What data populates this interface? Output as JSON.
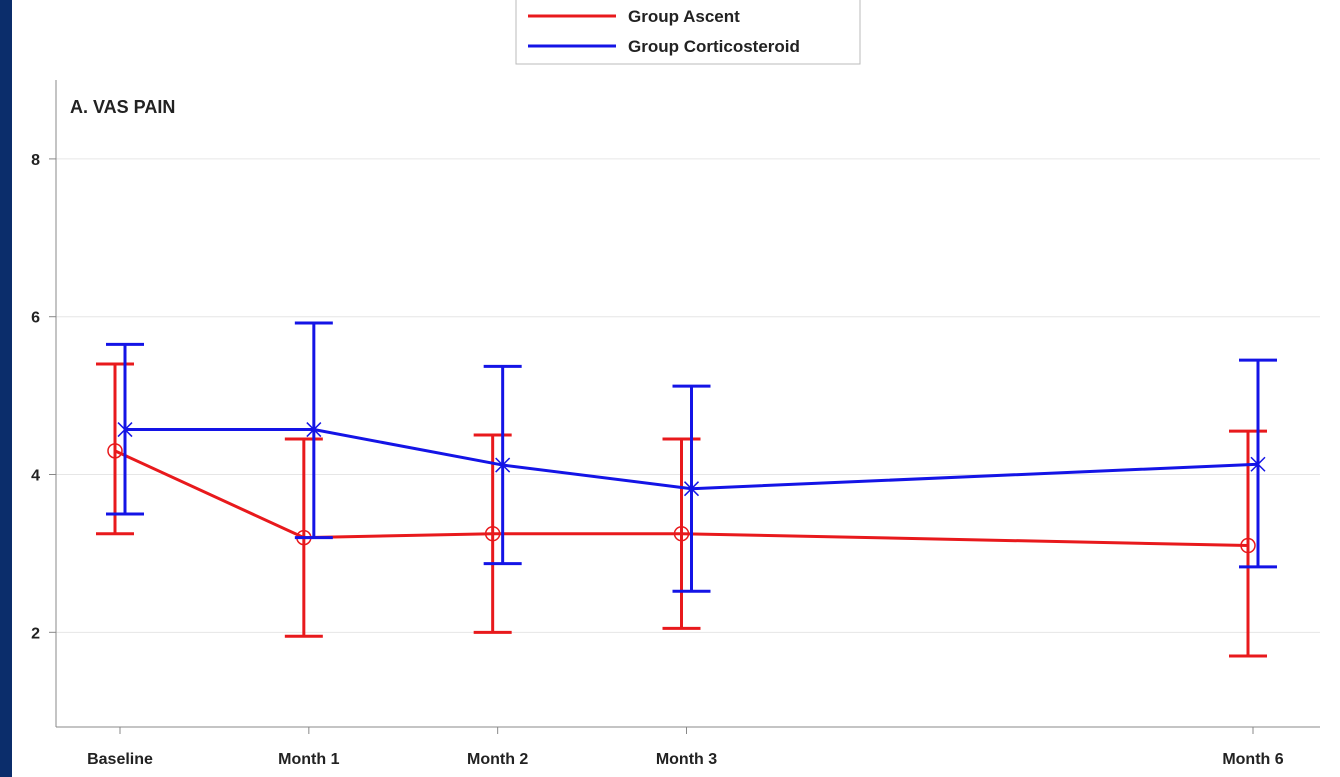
{
  "slide": {
    "background": "#0b2d6b",
    "panel_background": "#ffffff"
  },
  "chart_data": {
    "type": "line",
    "title": "A. VAS PAIN",
    "xlabel": "",
    "ylabel": "",
    "categories": [
      "Baseline",
      "Month 1",
      "Month 2",
      "Month 3",
      "Month 6"
    ],
    "x": [
      0,
      1,
      2,
      3,
      6
    ],
    "ylim": [
      0.8,
      9.0
    ],
    "yticks": [
      2,
      4,
      6,
      8
    ],
    "grid": true,
    "legend_position": "top-center",
    "series": [
      {
        "name": "Group Ascent",
        "color": "#e8191c",
        "marker": "circle",
        "values": [
          4.3,
          3.2,
          3.25,
          3.25,
          3.1
        ],
        "lower": [
          3.25,
          1.95,
          2.0,
          2.05,
          1.7
        ],
        "upper": [
          5.4,
          4.45,
          4.5,
          4.45,
          4.55
        ]
      },
      {
        "name": "Group Corticosteroid",
        "color": "#1414e6",
        "marker": "x",
        "values": [
          4.57,
          4.57,
          4.12,
          3.82,
          4.13
        ],
        "lower": [
          3.5,
          3.2,
          2.87,
          2.52,
          2.83
        ],
        "upper": [
          5.65,
          5.92,
          5.37,
          5.12,
          5.45
        ]
      }
    ]
  }
}
